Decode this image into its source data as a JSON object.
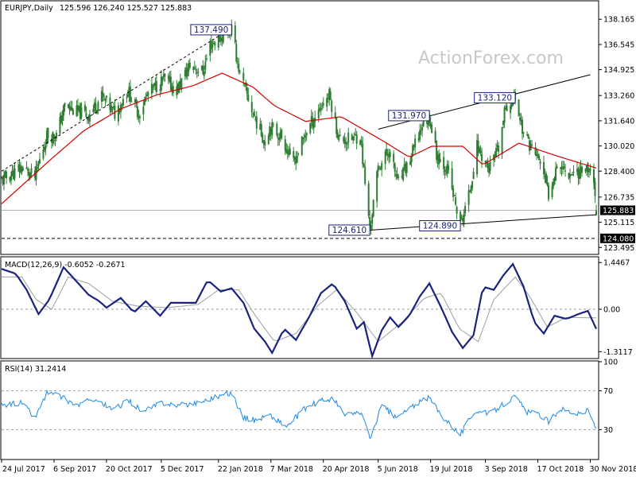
{
  "chart_data": [
    {
      "type": "candlestick",
      "title": "EURJPY,Daily",
      "ohlc_header": "125.596 126.240 125.527 125.883",
      "watermark": "ActionForex.com",
      "ylim": [
        123.1,
        139.3
      ],
      "y_ticks": [
        "138.165",
        "136.545",
        "134.925",
        "133.260",
        "131.640",
        "130.020",
        "128.400",
        "126.735",
        "125.115",
        "123.495"
      ],
      "current_price": "125.883",
      "support_line_label": "124.080",
      "support_level": 124.08,
      "current_level": 125.883,
      "x_start": "2017-07-24",
      "x_end": "2018-12-05",
      "x_ticks": [
        "24 Jul 2017",
        "6 Sep 2017",
        "20 Oct 2017",
        "5 Dec 2017",
        "22 Jan 2018",
        "7 Mar 2018",
        "20 Apr 2018",
        "5 Jun 2018",
        "19 Jul 2018",
        "3 Sep 2018",
        "17 Oct 2018",
        "30 Nov 2018"
      ],
      "price_anchors": [
        [
          "2017-07-24",
          127.8
        ],
        [
          "2017-08-10",
          128.6
        ],
        [
          "2017-08-21",
          128.0
        ],
        [
          "2017-08-31",
          130.7
        ],
        [
          "2017-09-08",
          130.7
        ],
        [
          "2017-09-15",
          132.6
        ],
        [
          "2017-09-25",
          132.2
        ],
        [
          "2017-10-05",
          132.0
        ],
        [
          "2017-10-16",
          133.2
        ],
        [
          "2017-10-27",
          132.1
        ],
        [
          "2017-11-07",
          133.6
        ],
        [
          "2017-11-16",
          132.1
        ],
        [
          "2017-11-24",
          133.4
        ],
        [
          "2017-12-07",
          134.3
        ],
        [
          "2017-12-18",
          133.6
        ],
        [
          "2017-12-29",
          135.2
        ],
        [
          "2018-01-09",
          134.8
        ],
        [
          "2018-01-15",
          136.5
        ],
        [
          "2018-02-02",
          137.5
        ],
        [
          "2018-02-09",
          134.6
        ],
        [
          "2018-02-21",
          131.9
        ],
        [
          "2018-03-02",
          130.3
        ],
        [
          "2018-03-06",
          131.3
        ],
        [
          "2018-03-16",
          130.6
        ],
        [
          "2018-03-26",
          128.9
        ],
        [
          "2018-04-06",
          131.0
        ],
        [
          "2018-04-18",
          132.6
        ],
        [
          "2018-04-25",
          133.3
        ],
        [
          "2018-05-03",
          130.5
        ],
        [
          "2018-05-10",
          130.4
        ],
        [
          "2018-05-21",
          130.7
        ],
        [
          "2018-05-29",
          124.6
        ],
        [
          "2018-06-05",
          128.6
        ],
        [
          "2018-06-14",
          129.7
        ],
        [
          "2018-06-22",
          127.6
        ],
        [
          "2018-07-02",
          129.2
        ],
        [
          "2018-07-12",
          131.4
        ],
        [
          "2018-07-18",
          131.9
        ],
        [
          "2018-07-24",
          129.5
        ],
        [
          "2018-08-02",
          128.5
        ],
        [
          "2018-08-13",
          124.9
        ],
        [
          "2018-08-20",
          126.8
        ],
        [
          "2018-08-27",
          130.0
        ],
        [
          "2018-09-06",
          128.5
        ],
        [
          "2018-09-14",
          129.8
        ],
        [
          "2018-09-20",
          132.5
        ],
        [
          "2018-09-28",
          133.1
        ],
        [
          "2018-10-05",
          130.8
        ],
        [
          "2018-10-15",
          129.5
        ],
        [
          "2018-10-19",
          129.0
        ],
        [
          "2018-10-26",
          126.9
        ],
        [
          "2018-11-02",
          128.9
        ],
        [
          "2018-11-12",
          128.3
        ],
        [
          "2018-11-20",
          128.4
        ],
        [
          "2018-11-28",
          128.6
        ],
        [
          "2018-12-03",
          128.0
        ],
        [
          "2018-12-05",
          125.883
        ]
      ],
      "moving_average_anchors": [
        [
          "2017-07-24",
          126.3
        ],
        [
          "2017-09-01",
          129.0
        ],
        [
          "2017-10-01",
          131.0
        ],
        [
          "2017-11-01",
          132.4
        ],
        [
          "2017-12-01",
          133.3
        ],
        [
          "2018-01-01",
          133.9
        ],
        [
          "2018-01-25",
          134.7
        ],
        [
          "2018-02-20",
          133.8
        ],
        [
          "2018-03-10",
          132.6
        ],
        [
          "2018-04-05",
          131.6
        ],
        [
          "2018-05-05",
          131.9
        ],
        [
          "2018-06-10",
          130.3
        ],
        [
          "2018-07-01",
          129.3
        ],
        [
          "2018-07-20",
          130.0
        ],
        [
          "2018-08-15",
          130.0
        ],
        [
          "2018-09-01",
          128.8
        ],
        [
          "2018-10-01",
          130.2
        ],
        [
          "2018-11-01",
          129.4
        ],
        [
          "2018-12-05",
          128.6
        ]
      ],
      "trendlines": [
        {
          "from": [
            "2017-07-24",
            128.4
          ],
          "to": [
            "2018-02-02",
            137.6
          ],
          "style": "dashed"
        },
        {
          "from": [
            "2018-06-05",
            131.1
          ],
          "to": [
            "2018-11-30",
            134.6
          ],
          "style": "solid"
        },
        {
          "from": [
            "2018-05-29",
            124.61
          ],
          "to": [
            "2018-12-05",
            125.6
          ],
          "style": "solid"
        }
      ],
      "annotations": [
        {
          "label": "137.490",
          "date": "2018-02-02",
          "price": 137.49
        },
        {
          "label": "131.970",
          "date": "2018-07-18",
          "price": 131.97
        },
        {
          "label": "133.120",
          "date": "2018-09-28",
          "price": 133.12
        },
        {
          "label": "124.610",
          "date": "2018-05-29",
          "price": 124.61
        },
        {
          "label": "124.890",
          "date": "2018-08-13",
          "price": 124.89
        }
      ],
      "colors": {
        "candle": "#2e7d32",
        "moving_average": "#d50000",
        "trendline": "#000000",
        "label": "#1a237e"
      }
    },
    {
      "type": "line",
      "title": "MACD(12,26,9) -0.6052 -0.2671",
      "ylim": [
        -1.5,
        1.6
      ],
      "y_ticks": [
        "1.4467",
        "0.00",
        "-1.3117"
      ],
      "series": [
        {
          "name": "MACD",
          "color": "#1a237e",
          "anchors": [
            [
              "2017-07-24",
              1.25
            ],
            [
              "2017-08-05",
              1.1
            ],
            [
              "2017-08-14",
              0.6
            ],
            [
              "2017-08-24",
              -0.15
            ],
            [
              "2017-09-02",
              0.3
            ],
            [
              "2017-09-14",
              1.3
            ],
            [
              "2017-09-24",
              0.9
            ],
            [
              "2017-10-05",
              0.45
            ],
            [
              "2017-10-14",
              0.25
            ],
            [
              "2017-10-20",
              0.05
            ],
            [
              "2017-11-01",
              0.35
            ],
            [
              "2017-11-12",
              -0.1
            ],
            [
              "2017-11-22",
              0.25
            ],
            [
              "2017-12-04",
              -0.2
            ],
            [
              "2017-12-13",
              0.2
            ],
            [
              "2017-12-24",
              0.2
            ],
            [
              "2018-01-03",
              0.2
            ],
            [
              "2018-01-13",
              0.9
            ],
            [
              "2018-01-24",
              0.55
            ],
            [
              "2018-02-02",
              0.65
            ],
            [
              "2018-02-12",
              0.2
            ],
            [
              "2018-02-21",
              -0.6
            ],
            [
              "2018-03-02",
              -1.0
            ],
            [
              "2018-03-08",
              -1.35
            ],
            [
              "2018-03-18",
              -0.6
            ],
            [
              "2018-03-28",
              -0.95
            ],
            [
              "2018-04-08",
              -0.25
            ],
            [
              "2018-04-18",
              0.5
            ],
            [
              "2018-04-28",
              0.8
            ],
            [
              "2018-05-08",
              0.25
            ],
            [
              "2018-05-18",
              -0.6
            ],
            [
              "2018-05-24",
              -0.4
            ],
            [
              "2018-05-31",
              -1.45
            ],
            [
              "2018-06-08",
              -0.65
            ],
            [
              "2018-06-15",
              -0.25
            ],
            [
              "2018-06-22",
              -0.55
            ],
            [
              "2018-07-01",
              -0.2
            ],
            [
              "2018-07-10",
              0.4
            ],
            [
              "2018-07-18",
              0.8
            ],
            [
              "2018-07-28",
              0.05
            ],
            [
              "2018-08-06",
              -0.7
            ],
            [
              "2018-08-15",
              -1.2
            ],
            [
              "2018-08-24",
              -0.8
            ],
            [
              "2018-09-01",
              0.7
            ],
            [
              "2018-09-10",
              0.6
            ],
            [
              "2018-09-18",
              1.05
            ],
            [
              "2018-09-26",
              1.4
            ],
            [
              "2018-10-05",
              0.7
            ],
            [
              "2018-10-14",
              -0.4
            ],
            [
              "2018-10-22",
              -0.75
            ],
            [
              "2018-10-31",
              -0.2
            ],
            [
              "2018-11-10",
              -0.3
            ],
            [
              "2018-11-20",
              -0.15
            ],
            [
              "2018-11-28",
              -0.05
            ],
            [
              "2018-12-05",
              -0.6052
            ]
          ]
        },
        {
          "name": "Signal",
          "color": "#9e9e9e",
          "anchors": [
            [
              "2017-07-24",
              1.0
            ],
            [
              "2017-08-10",
              1.0
            ],
            [
              "2017-08-22",
              0.3
            ],
            [
              "2017-09-04",
              0.0
            ],
            [
              "2017-09-18",
              1.0
            ],
            [
              "2017-10-05",
              0.8
            ],
            [
              "2017-10-25",
              0.25
            ],
            [
              "2017-11-15",
              0.1
            ],
            [
              "2017-12-10",
              0.05
            ],
            [
              "2018-01-05",
              0.15
            ],
            [
              "2018-01-22",
              0.6
            ],
            [
              "2018-02-08",
              0.6
            ],
            [
              "2018-02-22",
              -0.2
            ],
            [
              "2018-03-10",
              -1.0
            ],
            [
              "2018-03-28",
              -0.75
            ],
            [
              "2018-04-15",
              0.1
            ],
            [
              "2018-05-01",
              0.6
            ],
            [
              "2018-05-18",
              -0.1
            ],
            [
              "2018-06-05",
              -1.0
            ],
            [
              "2018-06-25",
              -0.4
            ],
            [
              "2018-07-14",
              0.35
            ],
            [
              "2018-07-28",
              0.5
            ],
            [
              "2018-08-12",
              -0.6
            ],
            [
              "2018-08-28",
              -1.0
            ],
            [
              "2018-09-10",
              0.3
            ],
            [
              "2018-09-28",
              1.0
            ],
            [
              "2018-10-10",
              0.4
            ],
            [
              "2018-10-25",
              -0.55
            ],
            [
              "2018-11-10",
              -0.25
            ],
            [
              "2018-12-05",
              -0.2671
            ]
          ]
        }
      ]
    },
    {
      "type": "line",
      "title": "RSI(14) 31.2414",
      "ylim": [
        0,
        100
      ],
      "y_ticks": [
        "100",
        "70",
        "30"
      ],
      "levels": [
        70,
        30
      ],
      "series": [
        {
          "name": "RSI",
          "color": "#1e88e5",
          "anchors": [
            [
              "2017-07-24",
              55
            ],
            [
              "2017-08-10",
              58
            ],
            [
              "2017-08-21",
              42
            ],
            [
              "2017-08-31",
              68
            ],
            [
              "2017-09-10",
              65
            ],
            [
              "2017-09-25",
              55
            ],
            [
              "2017-10-10",
              62
            ],
            [
              "2017-10-25",
              50
            ],
            [
              "2017-11-08",
              60
            ],
            [
              "2017-11-20",
              48
            ],
            [
              "2017-12-05",
              58
            ],
            [
              "2017-12-20",
              55
            ],
            [
              "2018-01-05",
              58
            ],
            [
              "2018-01-20",
              64
            ],
            [
              "2018-02-02",
              68
            ],
            [
              "2018-02-12",
              42
            ],
            [
              "2018-02-22",
              40
            ],
            [
              "2018-03-06",
              45
            ],
            [
              "2018-03-20",
              33
            ],
            [
              "2018-04-05",
              52
            ],
            [
              "2018-04-18",
              60
            ],
            [
              "2018-04-28",
              62
            ],
            [
              "2018-05-08",
              45
            ],
            [
              "2018-05-22",
              48
            ],
            [
              "2018-05-29",
              20
            ],
            [
              "2018-06-08",
              55
            ],
            [
              "2018-06-20",
              42
            ],
            [
              "2018-07-05",
              55
            ],
            [
              "2018-07-18",
              63
            ],
            [
              "2018-07-28",
              45
            ],
            [
              "2018-08-13",
              25
            ],
            [
              "2018-08-25",
              50
            ],
            [
              "2018-09-06",
              46
            ],
            [
              "2018-09-20",
              58
            ],
            [
              "2018-09-28",
              64
            ],
            [
              "2018-10-08",
              48
            ],
            [
              "2018-10-20",
              45
            ],
            [
              "2018-10-26",
              38
            ],
            [
              "2018-11-05",
              52
            ],
            [
              "2018-11-20",
              46
            ],
            [
              "2018-11-28",
              50
            ],
            [
              "2018-12-05",
              31.2414
            ]
          ]
        }
      ]
    }
  ]
}
